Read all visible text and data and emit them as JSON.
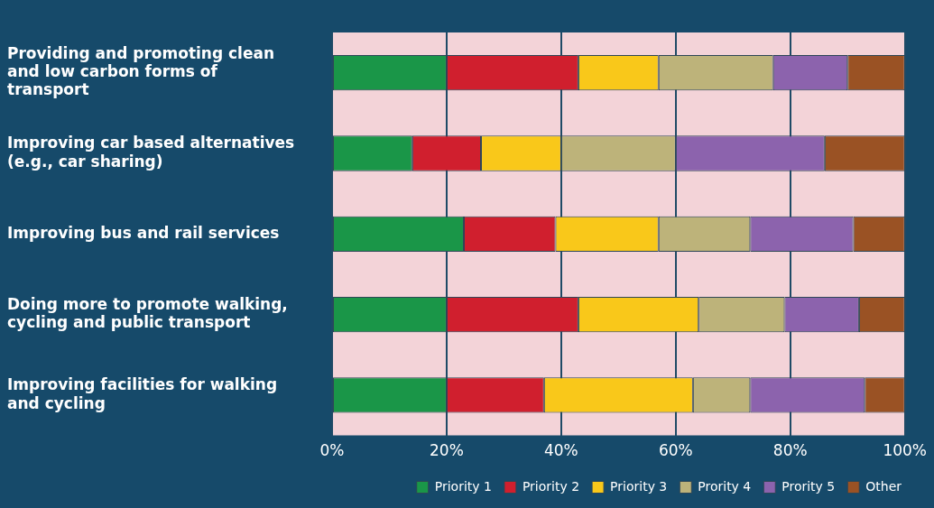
{
  "chart_data": {
    "type": "bar",
    "orientation": "horizontal",
    "stacked": true,
    "categories": [
      "Providing and promoting clean and low carbon forms of transport",
      "Improving car based alternatives (e.g., car sharing)",
      "Improving bus and rail services",
      "Doing more to promote walking, cycling and public transport",
      "Improving facilities for walking and cycling"
    ],
    "series": [
      {
        "name": "Priority 1",
        "color": "#1a9648",
        "values": [
          20,
          14,
          23,
          20,
          20
        ]
      },
      {
        "name": "Priority 2",
        "color": "#d01f2e",
        "values": [
          23,
          12,
          16,
          23,
          17
        ]
      },
      {
        "name": "Priority 3",
        "color": "#f9c81a",
        "values": [
          14,
          14,
          18,
          21,
          26
        ]
      },
      {
        "name": "Prority 4",
        "color": "#bdb37a",
        "values": [
          20,
          20,
          16,
          15,
          10
        ]
      },
      {
        "name": "Prority 5",
        "color": "#8c63ad",
        "values": [
          13,
          26,
          18,
          13,
          20
        ]
      },
      {
        "name": "Other",
        "color": "#9a5224",
        "values": [
          10,
          14,
          9,
          8,
          7
        ]
      }
    ],
    "xlim": [
      0,
      100
    ],
    "xticks": [
      {
        "value": 0,
        "label": "0%"
      },
      {
        "value": 20,
        "label": "20%"
      },
      {
        "value": 40,
        "label": "40%"
      },
      {
        "value": 60,
        "label": "60%"
      },
      {
        "value": 80,
        "label": "80%"
      },
      {
        "value": 100,
        "label": "100%"
      }
    ],
    "grid": "x",
    "legend": "bottom"
  }
}
